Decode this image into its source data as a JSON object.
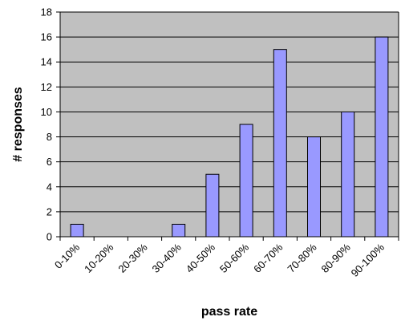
{
  "chart_data": {
    "type": "bar",
    "title": "",
    "xlabel": "pass rate",
    "ylabel": "# responses",
    "categories": [
      "0-10%",
      "10-20%",
      "20-30%",
      "30-40%",
      "40-50%",
      "50-60%",
      "60-70%",
      "70-80%",
      "80-90%",
      "90-100%"
    ],
    "values": [
      1,
      0,
      0,
      1,
      5,
      9,
      15,
      8,
      10,
      16
    ],
    "ylim": [
      0,
      18
    ],
    "yticks": [
      0,
      2,
      4,
      6,
      8,
      10,
      12,
      14,
      16,
      18
    ],
    "grid": true,
    "legend": "none",
    "colors": {
      "plot_background": "#c0c0c0",
      "bar_fill": "#9999ff",
      "bar_stroke": "#000000",
      "gridline": "#000000",
      "axis": "#000000"
    }
  }
}
